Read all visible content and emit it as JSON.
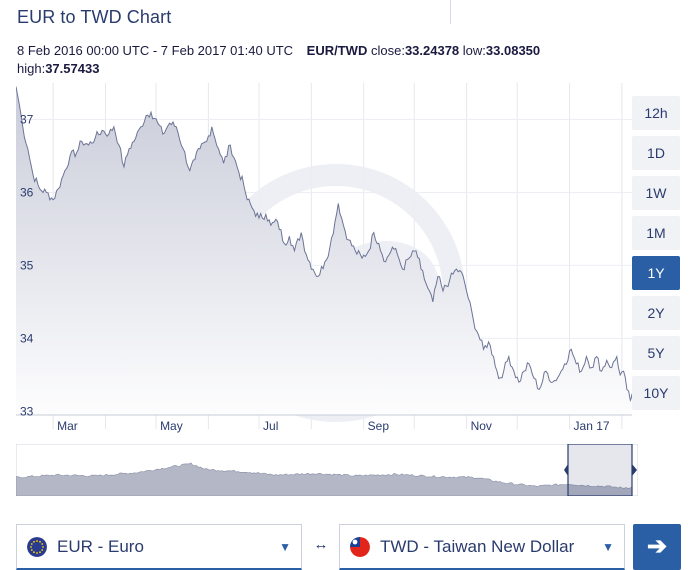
{
  "header": {
    "title": "EUR to TWD Chart"
  },
  "summary": {
    "range": "8 Feb 2016 00:00 UTC - 7 Feb 2017 01:40 UTC",
    "pair": "EUR/TWD",
    "close_label": "close:",
    "close_value": "33.24378",
    "low_label": "low:",
    "low_value": "33.08350",
    "high_label": "high:",
    "high_value": "37.57433"
  },
  "range_buttons": [
    "12h",
    "1D",
    "1W",
    "1M",
    "1Y",
    "2Y",
    "5Y",
    "10Y"
  ],
  "active_range": "1Y",
  "colors": {
    "line": "#6c7496",
    "fill_top": "#c9ccd9",
    "fill_bottom": "#fdfdfe",
    "nav_fill": "#b3b7c6",
    "accent": "#2a5fa5",
    "watermark": "#eceef3"
  },
  "watermark_icon": "xe-logo-watermark",
  "from_currency": {
    "label": "EUR - Euro",
    "icon": "eu-flag-icon"
  },
  "to_currency": {
    "label": "TWD - Taiwan New Dollar",
    "icon": "taiwan-flag-icon"
  },
  "swap_icon": "↔",
  "go_icon": "➔",
  "chart_data": {
    "type": "area",
    "x_ticks": [
      "Mar",
      "May",
      "Jul",
      "Sep",
      "Nov",
      "Jan 17"
    ],
    "y_ticks": [
      "33",
      "34",
      "35",
      "36",
      "37"
    ],
    "ylim": [
      32.95,
      37.5
    ],
    "x_range": [
      "2016-02-08",
      "2017-02-07"
    ],
    "grid": true,
    "series": [
      {
        "points": [
          [
            "2016-02-08",
            37.45
          ],
          [
            "2016-02-10",
            37.2
          ],
          [
            "2016-02-12",
            36.9
          ],
          [
            "2016-02-15",
            36.6
          ],
          [
            "2016-02-18",
            36.25
          ],
          [
            "2016-02-22",
            36.05
          ],
          [
            "2016-02-26",
            36.0
          ],
          [
            "2016-03-01",
            35.9
          ],
          [
            "2016-03-04",
            36.05
          ],
          [
            "2016-03-08",
            36.3
          ],
          [
            "2016-03-11",
            36.5
          ],
          [
            "2016-03-15",
            36.55
          ],
          [
            "2016-03-18",
            36.7
          ],
          [
            "2016-03-22",
            36.65
          ],
          [
            "2016-03-26",
            36.75
          ],
          [
            "2016-03-30",
            36.85
          ],
          [
            "2016-04-03",
            36.8
          ],
          [
            "2016-04-06",
            36.9
          ],
          [
            "2016-04-09",
            36.65
          ],
          [
            "2016-04-12",
            36.35
          ],
          [
            "2016-04-15",
            36.6
          ],
          [
            "2016-04-19",
            36.75
          ],
          [
            "2016-04-22",
            36.9
          ],
          [
            "2016-04-25",
            37.05
          ],
          [
            "2016-04-28",
            37.1
          ],
          [
            "2016-05-02",
            36.95
          ],
          [
            "2016-05-05",
            36.8
          ],
          [
            "2016-05-09",
            36.95
          ],
          [
            "2016-05-13",
            36.9
          ],
          [
            "2016-05-17",
            36.6
          ],
          [
            "2016-05-21",
            36.3
          ],
          [
            "2016-05-24",
            36.45
          ],
          [
            "2016-05-27",
            36.6
          ],
          [
            "2016-05-31",
            36.7
          ],
          [
            "2016-06-03",
            36.9
          ],
          [
            "2016-06-07",
            36.6
          ],
          [
            "2016-06-10",
            36.4
          ],
          [
            "2016-06-14",
            36.65
          ],
          [
            "2016-06-18",
            36.35
          ],
          [
            "2016-06-22",
            36.1
          ],
          [
            "2016-06-24",
            35.9
          ],
          [
            "2016-06-28",
            35.75
          ],
          [
            "2016-07-01",
            35.65
          ],
          [
            "2016-07-05",
            35.7
          ],
          [
            "2016-07-08",
            35.55
          ],
          [
            "2016-07-12",
            35.6
          ],
          [
            "2016-07-16",
            35.3
          ],
          [
            "2016-07-19",
            35.4
          ],
          [
            "2016-07-22",
            35.2
          ],
          [
            "2016-07-26",
            35.45
          ],
          [
            "2016-07-29",
            35.15
          ],
          [
            "2016-08-02",
            34.95
          ],
          [
            "2016-08-05",
            34.85
          ],
          [
            "2016-08-09",
            35.05
          ],
          [
            "2016-08-12",
            35.25
          ],
          [
            "2016-08-15",
            35.6
          ],
          [
            "2016-08-17",
            35.85
          ],
          [
            "2016-08-20",
            35.55
          ],
          [
            "2016-08-23",
            35.35
          ],
          [
            "2016-08-27",
            35.2
          ],
          [
            "2016-08-31",
            35.1
          ],
          [
            "2016-09-04",
            35.2
          ],
          [
            "2016-09-07",
            35.45
          ],
          [
            "2016-09-10",
            35.3
          ],
          [
            "2016-09-14",
            35.05
          ],
          [
            "2016-09-18",
            35.25
          ],
          [
            "2016-09-21",
            35.15
          ],
          [
            "2016-09-24",
            34.95
          ],
          [
            "2016-09-28",
            35.1
          ],
          [
            "2016-10-02",
            35.2
          ],
          [
            "2016-10-05",
            34.95
          ],
          [
            "2016-10-08",
            34.75
          ],
          [
            "2016-10-12",
            34.5
          ],
          [
            "2016-10-15",
            34.85
          ],
          [
            "2016-10-18",
            34.65
          ],
          [
            "2016-10-22",
            34.8
          ],
          [
            "2016-10-26",
            34.95
          ],
          [
            "2016-10-30",
            34.85
          ],
          [
            "2016-11-02",
            34.55
          ],
          [
            "2016-11-05",
            34.25
          ],
          [
            "2016-11-08",
            34.05
          ],
          [
            "2016-11-11",
            33.85
          ],
          [
            "2016-11-14",
            33.95
          ],
          [
            "2016-11-17",
            33.75
          ],
          [
            "2016-11-20",
            33.45
          ],
          [
            "2016-11-23",
            33.55
          ],
          [
            "2016-11-26",
            33.75
          ],
          [
            "2016-11-29",
            33.55
          ],
          [
            "2016-12-02",
            33.4
          ],
          [
            "2016-12-05",
            33.55
          ],
          [
            "2016-12-08",
            33.65
          ],
          [
            "2016-12-11",
            33.45
          ],
          [
            "2016-12-14",
            33.3
          ],
          [
            "2016-12-18",
            33.55
          ],
          [
            "2016-12-22",
            33.4
          ],
          [
            "2016-12-26",
            33.5
          ],
          [
            "2016-12-29",
            33.65
          ],
          [
            "2017-01-02",
            33.85
          ],
          [
            "2017-01-05",
            33.65
          ],
          [
            "2017-01-08",
            33.55
          ],
          [
            "2017-01-11",
            33.75
          ],
          [
            "2017-01-14",
            33.6
          ],
          [
            "2017-01-17",
            33.75
          ],
          [
            "2017-01-20",
            33.55
          ],
          [
            "2017-01-23",
            33.7
          ],
          [
            "2017-01-26",
            33.6
          ],
          [
            "2017-01-29",
            33.75
          ],
          [
            "2017-01-31",
            33.5
          ],
          [
            "2017-02-02",
            33.55
          ],
          [
            "2017-02-04",
            33.3
          ],
          [
            "2017-02-06",
            33.15
          ],
          [
            "2017-02-07",
            33.24
          ]
        ]
      }
    ]
  }
}
